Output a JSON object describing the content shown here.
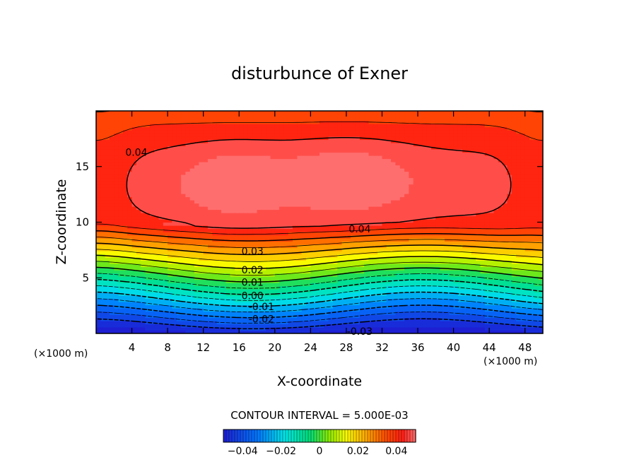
{
  "chart_data": {
    "type": "contour",
    "title": "disturbunce of Exner",
    "xlabel": "X-coordinate",
    "ylabel": "Z-coordinate",
    "x_unit": "(×1000 m)",
    "y_unit": "(×1000 m)",
    "xlim": [
      0,
      50
    ],
    "ylim": [
      0,
      20
    ],
    "x_ticks": [
      4,
      8,
      12,
      16,
      20,
      24,
      28,
      32,
      36,
      40,
      44,
      48
    ],
    "y_ticks": [
      5,
      10,
      15
    ],
    "x_tick_labels": [
      "4",
      "8",
      "12",
      "16",
      "20",
      "24",
      "28",
      "32",
      "36",
      "40",
      "44",
      "48"
    ],
    "y_tick_labels": [
      "5",
      "10",
      "15"
    ],
    "contour_interval_text": "CONTOUR INTERVAL = 5.000E-03",
    "contour_interval": 0.005,
    "value_range": [
      -0.045,
      0.045
    ],
    "negative_contours_dashed": true,
    "contour_labels": [
      {
        "text": "0.04",
        "x": 4.5,
        "z": 16.3
      },
      {
        "text": "0.04",
        "x": 29.5,
        "z": 9.4
      },
      {
        "text": "0.03",
        "x": 17.5,
        "z": 7.4
      },
      {
        "text": "0.02",
        "x": 17.5,
        "z": 5.7
      },
      {
        "text": "0.01",
        "x": 17.5,
        "z": 4.6
      },
      {
        "text": "0.00",
        "x": 17.5,
        "z": 3.4
      },
      {
        "text": "-0.01",
        "x": 18.5,
        "z": 2.4
      },
      {
        "text": "-0.02",
        "x": 18.5,
        "z": 1.3
      },
      {
        "text": "-0.03",
        "x": 29.5,
        "z": 0.2
      }
    ],
    "colorbar": {
      "min": -0.05,
      "max": 0.05,
      "tick_values": [
        -0.04,
        -0.02,
        0,
        0.02,
        0.04
      ],
      "tick_labels": [
        "−0.04",
        "−0.02",
        "0",
        "0.02",
        "0.04"
      ]
    },
    "colormap": "rainbow (blue → cyan → green → yellow → red)"
  }
}
